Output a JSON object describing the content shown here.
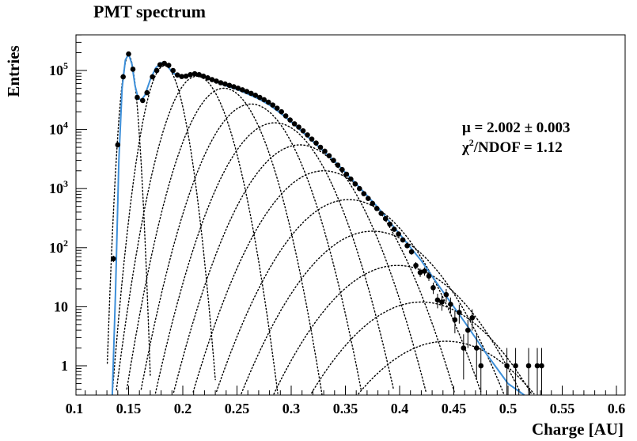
{
  "chart_data": {
    "type": "scatter",
    "title": "PMT spectrum",
    "xlabel": "Charge [AU]",
    "ylabel": "Entries",
    "xlim": [
      0.1,
      0.6
    ],
    "ylim": [
      0.3,
      450000
    ],
    "yscale": "log",
    "x_ticks": [
      "0.1",
      "0.15",
      "0.2",
      "0.25",
      "0.3",
      "0.35",
      "0.4",
      "0.45",
      "0.5",
      "0.55",
      "0.6"
    ],
    "y_ticks": [
      {
        "value": 1,
        "label": "1",
        "exp": ""
      },
      {
        "value": 10,
        "label": "10",
        "exp": ""
      },
      {
        "value": 100,
        "label": "10",
        "exp": "2"
      },
      {
        "value": 1000,
        "label": "10",
        "exp": "3"
      },
      {
        "value": 10000,
        "label": "10",
        "exp": "4"
      },
      {
        "value": 100000,
        "label": "10",
        "exp": "5"
      }
    ],
    "annotations": {
      "mu_symbol": "μ",
      "mu_text": " = 2.002  ± 0.003",
      "chi_symbol": "χ",
      "chi_exp": "2",
      "chi_text": "/NDOF = 1.12"
    },
    "colors": {
      "fit": "#3d8fd9",
      "points": "#000000",
      "components": "#000000"
    },
    "fit": {
      "name": "total fit",
      "x": [
        0.135,
        0.138,
        0.141,
        0.144,
        0.147,
        0.15,
        0.153,
        0.156,
        0.159,
        0.162,
        0.165,
        0.17,
        0.175,
        0.18,
        0.185,
        0.19,
        0.195,
        0.2,
        0.205,
        0.21,
        0.215,
        0.22,
        0.23,
        0.24,
        0.25,
        0.26,
        0.27,
        0.28,
        0.29,
        0.3,
        0.32,
        0.34,
        0.36,
        0.38,
        0.4,
        0.42,
        0.44,
        0.46,
        0.48,
        0.5,
        0.515
      ],
      "y": [
        0.3,
        20,
        3000,
        50000,
        150000,
        190000,
        130000,
        55000,
        33000,
        32000,
        38000,
        70000,
        110000,
        135000,
        125000,
        95000,
        80000,
        78000,
        82000,
        86000,
        83000,
        78000,
        65000,
        55000,
        48000,
        40000,
        33000,
        26000,
        19000,
        13500,
        6300,
        2900,
        1200,
        480,
        170,
        60,
        18,
        5.5,
        1.6,
        0.5,
        0.3
      ]
    },
    "points": [
      {
        "x": 0.136,
        "y": 65
      },
      {
        "x": 0.14,
        "y": 5500
      },
      {
        "x": 0.145,
        "y": 78000
      },
      {
        "x": 0.15,
        "y": 190000
      },
      {
        "x": 0.154,
        "y": 105000
      },
      {
        "x": 0.158,
        "y": 35000
      },
      {
        "x": 0.163,
        "y": 31000
      },
      {
        "x": 0.167,
        "y": 42000
      },
      {
        "x": 0.172,
        "y": 78000
      },
      {
        "x": 0.176,
        "y": 100000
      },
      {
        "x": 0.179,
        "y": 125000
      },
      {
        "x": 0.183,
        "y": 132000
      },
      {
        "x": 0.187,
        "y": 122000
      },
      {
        "x": 0.191,
        "y": 100000
      },
      {
        "x": 0.195,
        "y": 84000
      },
      {
        "x": 0.199,
        "y": 79000
      },
      {
        "x": 0.203,
        "y": 80000
      },
      {
        "x": 0.207,
        "y": 85000
      },
      {
        "x": 0.211,
        "y": 88000
      },
      {
        "x": 0.215,
        "y": 85000
      },
      {
        "x": 0.219,
        "y": 80000
      },
      {
        "x": 0.223,
        "y": 75000
      },
      {
        "x": 0.227,
        "y": 70000
      },
      {
        "x": 0.231,
        "y": 66000
      },
      {
        "x": 0.235,
        "y": 62000
      },
      {
        "x": 0.239,
        "y": 59000
      },
      {
        "x": 0.243,
        "y": 56000
      },
      {
        "x": 0.247,
        "y": 53000
      },
      {
        "x": 0.251,
        "y": 50000
      },
      {
        "x": 0.255,
        "y": 47000
      },
      {
        "x": 0.259,
        "y": 44000
      },
      {
        "x": 0.263,
        "y": 41000
      },
      {
        "x": 0.267,
        "y": 38000
      },
      {
        "x": 0.271,
        "y": 35000
      },
      {
        "x": 0.275,
        "y": 32000
      },
      {
        "x": 0.279,
        "y": 29000
      },
      {
        "x": 0.283,
        "y": 26000
      },
      {
        "x": 0.287,
        "y": 23000
      },
      {
        "x": 0.291,
        "y": 20000
      },
      {
        "x": 0.295,
        "y": 17000
      },
      {
        "x": 0.299,
        "y": 14500
      },
      {
        "x": 0.303,
        "y": 12500
      },
      {
        "x": 0.307,
        "y": 11000
      },
      {
        "x": 0.311,
        "y": 9500
      },
      {
        "x": 0.315,
        "y": 8100
      },
      {
        "x": 0.319,
        "y": 6900
      },
      {
        "x": 0.323,
        "y": 5900
      },
      {
        "x": 0.327,
        "y": 5000
      },
      {
        "x": 0.331,
        "y": 4300
      },
      {
        "x": 0.335,
        "y": 3600
      },
      {
        "x": 0.339,
        "y": 3000
      },
      {
        "x": 0.343,
        "y": 2500
      },
      {
        "x": 0.347,
        "y": 2100
      },
      {
        "x": 0.351,
        "y": 1750
      },
      {
        "x": 0.355,
        "y": 1450
      },
      {
        "x": 0.359,
        "y": 1200
      },
      {
        "x": 0.363,
        "y": 1000
      },
      {
        "x": 0.367,
        "y": 820
      },
      {
        "x": 0.371,
        "y": 680
      },
      {
        "x": 0.375,
        "y": 560
      },
      {
        "x": 0.379,
        "y": 460
      },
      {
        "x": 0.383,
        "y": 380
      },
      {
        "x": 0.387,
        "y": 310
      },
      {
        "x": 0.391,
        "y": 250
      },
      {
        "x": 0.395,
        "y": 205
      },
      {
        "x": 0.399,
        "y": 170
      },
      {
        "x": 0.403,
        "y": 135
      },
      {
        "x": 0.407,
        "y": 108
      },
      {
        "x": 0.411,
        "y": 85
      },
      {
        "x": 0.415,
        "y": 50
      },
      {
        "x": 0.419,
        "y": 38
      },
      {
        "x": 0.423,
        "y": 40
      },
      {
        "x": 0.427,
        "y": 33
      },
      {
        "x": 0.431,
        "y": 21
      },
      {
        "x": 0.435,
        "y": 13
      },
      {
        "x": 0.439,
        "y": 12
      },
      {
        "x": 0.443,
        "y": 16
      },
      {
        "x": 0.447,
        "y": 11
      },
      {
        "x": 0.451,
        "y": 6
      },
      {
        "x": 0.455,
        "y": 8
      },
      {
        "x": 0.459,
        "y": 2
      },
      {
        "x": 0.463,
        "y": 4
      },
      {
        "x": 0.467,
        "y": 6.5
      },
      {
        "x": 0.471,
        "y": 2
      },
      {
        "x": 0.475,
        "y": 1
      },
      {
        "x": 0.499,
        "y": 1
      },
      {
        "x": 0.507,
        "y": 1
      },
      {
        "x": 0.519,
        "y": 1
      },
      {
        "x": 0.527,
        "y": 1
      },
      {
        "x": 0.531,
        "y": 1
      }
    ],
    "components": [
      {
        "mu": 0.15,
        "sigma": 0.004,
        "amp": 180000
      },
      {
        "mu": 0.183,
        "sigma": 0.0095,
        "amp": 120000
      },
      {
        "mu": 0.213,
        "sigma": 0.015,
        "amp": 80000
      },
      {
        "mu": 0.238,
        "sigma": 0.0185,
        "amp": 50000
      },
      {
        "mu": 0.263,
        "sigma": 0.0215,
        "amp": 27000
      },
      {
        "mu": 0.285,
        "sigma": 0.024,
        "amp": 13000
      },
      {
        "mu": 0.308,
        "sigma": 0.0265,
        "amp": 5500
      },
      {
        "mu": 0.33,
        "sigma": 0.029,
        "amp": 2000
      },
      {
        "mu": 0.353,
        "sigma": 0.0315,
        "amp": 650
      },
      {
        "mu": 0.375,
        "sigma": 0.034,
        "amp": 190
      },
      {
        "mu": 0.398,
        "sigma": 0.036,
        "amp": 50
      },
      {
        "mu": 0.42,
        "sigma": 0.038,
        "amp": 12
      },
      {
        "mu": 0.443,
        "sigma": 0.04,
        "amp": 2.6
      }
    ]
  }
}
